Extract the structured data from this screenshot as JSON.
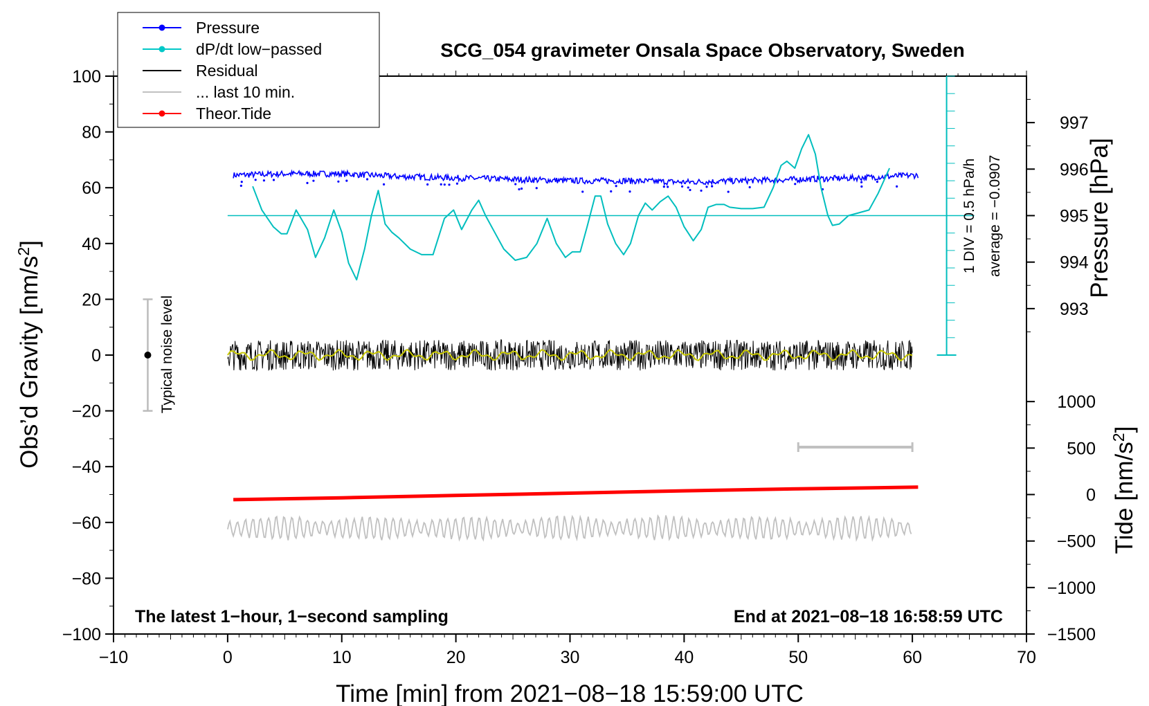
{
  "chart_data": {
    "type": "line",
    "title": "SCG_054 gravimeter Onsala Space Observatory, Sweden",
    "xlabel": "Time [min] from 2021−08−18 15:59:00 UTC",
    "ylabel": "Obs’d Gravity [nm/s",
    "ylabel_sup": "2",
    "ylabel_end": "]",
    "y2label": "Pressure [hPa]",
    "y3label": "Tide [nm/s",
    "y3label_sup": "2",
    "y3label_end": "]",
    "xlim": [
      -10,
      70
    ],
    "ylim": [
      -100,
      100
    ],
    "x_ticks": [
      -10,
      0,
      10,
      20,
      30,
      40,
      50,
      60,
      70
    ],
    "x_tick_labels": [
      "−10",
      "0",
      "10",
      "20",
      "30",
      "40",
      "50",
      "60",
      "70"
    ],
    "y_ticks": [
      -100,
      -80,
      -60,
      -40,
      -20,
      0,
      20,
      40,
      60,
      80,
      100
    ],
    "y_tick_labels": [
      "−100",
      "−80",
      "−60",
      "−40",
      "−20",
      "0",
      "20",
      "40",
      "60",
      "80",
      "100"
    ],
    "pressure_axis": {
      "ticks": [
        993,
        994,
        995,
        996,
        997
      ],
      "labels": [
        "993",
        "994",
        "995",
        "996",
        "997"
      ],
      "gravity_at_995": 50,
      "gravity_per_hpa": 16.67
    },
    "tide_axis": {
      "ticks": [
        -1500,
        -1000,
        -500,
        0,
        500,
        1000
      ],
      "labels": [
        "−1500",
        "−1000",
        "−500",
        "0",
        "500",
        "1000"
      ],
      "gravity_at_zero": -50,
      "gravity_per_unit": 0.03333
    },
    "legend": [
      {
        "label": "Pressure",
        "color": "#0000ff",
        "marker": true
      },
      {
        "label": "dP/dt low−passed",
        "color": "#00c8c8",
        "marker": true
      },
      {
        "label": "Residual",
        "color": "#000000",
        "marker": false
      },
      {
        "label": "... last 10 min.",
        "color": "#c0c0c0",
        "marker": false
      },
      {
        "label": "Theor.Tide",
        "color": "#ff0000",
        "marker": true
      }
    ],
    "colors": {
      "pressure": "#0000ff",
      "dpdt": "#00bebe",
      "residual": "#000000",
      "residual_smooth": "#c8c800",
      "last10": "#c0c0c0",
      "tide": "#ff0000",
      "noise_bar": "#bbbbbb"
    },
    "series": [
      {
        "name": "Pressure",
        "unit": "gravity-scale",
        "x": [
          0.5,
          5,
          10,
          15,
          20,
          25,
          30,
          35,
          40,
          45,
          50,
          55,
          60.5
        ],
        "values": [
          64.5,
          65,
          65,
          64,
          63.5,
          63,
          62.5,
          62.5,
          62,
          62.5,
          63,
          63.5,
          64.5
        ]
      },
      {
        "name": "dP/dt low-passed",
        "unit": "gravity-scale",
        "x": [
          2.2,
          3,
          4,
          4.7,
          5.2,
          6,
          7,
          7.7,
          8.5,
          9.3,
          10,
          10.6,
          11.3,
          12,
          12.6,
          13.2,
          13.8,
          14.4,
          15,
          16,
          17,
          18,
          19,
          19.8,
          20.5,
          21.4,
          22,
          22.6,
          23.4,
          24.2,
          25.2,
          26.2,
          27.1,
          28,
          28.8,
          29.6,
          30.2,
          30.9,
          31.5,
          32.2,
          32.7,
          33.3,
          34,
          34.7,
          35.3,
          36,
          36.6,
          37.2,
          37.9,
          38.6,
          39.3,
          40,
          40.8,
          41.5,
          42.1,
          42.8,
          43.5,
          44,
          45,
          46,
          47,
          47.8,
          48.5,
          49,
          49.7,
          50.3,
          50.9,
          51.5,
          52,
          52.6,
          53,
          53.6,
          54.4,
          55.3,
          56.2,
          57,
          58
        ],
        "values": [
          60.5,
          52,
          46,
          43.5,
          43.5,
          52,
          45,
          35,
          42,
          52,
          44,
          33,
          27,
          38,
          50,
          59,
          47,
          44,
          42,
          38,
          36,
          36,
          49,
          52,
          45,
          52,
          55.5,
          50,
          44,
          38,
          34,
          35,
          40,
          49,
          40,
          35,
          37,
          37,
          46,
          57,
          57,
          47,
          40,
          36,
          40,
          50,
          54.5,
          52,
          55,
          57,
          53,
          46,
          41,
          45,
          53,
          54,
          54,
          53,
          52.5,
          52.5,
          53,
          60,
          68,
          69.5,
          67,
          74,
          79,
          72,
          60,
          50,
          46.5,
          47,
          50,
          51,
          52,
          58,
          67
        ]
      },
      {
        "name": "Residual",
        "unit": "nm/s2",
        "x": [
          0,
          60
        ],
        "values": [
          0,
          0
        ],
        "band": [
          -5,
          5
        ]
      },
      {
        "name": "... last 10 min.",
        "unit": "nm/s2 (offset -62)",
        "x": [
          0,
          60
        ],
        "values": [
          -62,
          -62
        ],
        "band": [
          -66,
          -57
        ]
      },
      {
        "name": "Theor.Tide",
        "unit": "nm/s2 (tide axis)",
        "x": [
          0.5,
          10,
          20,
          30,
          40,
          50,
          60.5
        ],
        "values": [
          -55,
          -35,
          -10,
          15,
          40,
          62,
          80
        ]
      }
    ],
    "dpdt_reference": {
      "level": 50,
      "x_start": 0,
      "x_end": 63
    },
    "dpdt_scale_bar": {
      "x": 63,
      "y_top": 100,
      "y_bottom": 0,
      "label_1": "1 DIV = 0.5 hPa/h",
      "label_2": "average = −0.0907"
    },
    "noise_bar": {
      "x": -7,
      "y_center": 0,
      "y_low": -20,
      "y_high": 20,
      "label": "Typical noise level"
    },
    "last10_marker": {
      "x_start": 50,
      "x_end": 60,
      "y": -33
    },
    "footer_left": "The latest 1−hour, 1−second sampling",
    "footer_right": "End at 2021−08−18 16:58:59 UTC"
  }
}
